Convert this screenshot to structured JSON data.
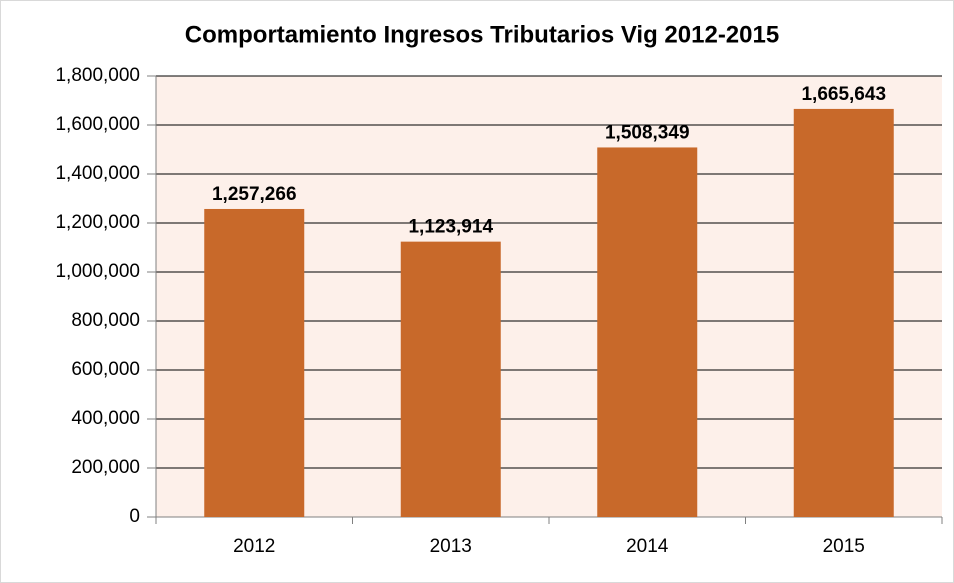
{
  "chart_data": {
    "type": "bar",
    "title": "Comportamiento  Ingresos Tributarios Vig 2012-2015",
    "categories": [
      "2012",
      "2013",
      "2014",
      "2015"
    ],
    "values": [
      1257266,
      1123914,
      1508349,
      1665643
    ],
    "value_labels": [
      "1,257,266",
      "1,123,914",
      "1,508,349",
      "1,665,643"
    ],
    "color": "#c8692a",
    "ylim": [
      0,
      1800000
    ],
    "yticks": [
      0,
      {
        "value": 200000,
        "label": "200,000"
      },
      {
        "value": 400000,
        "label": "400,000"
      },
      {
        "value": 600000,
        "label": "600,000"
      },
      {
        "value": 800000,
        "label": "800,000"
      },
      {
        "value": 1000000,
        "label": "1,000,000"
      },
      {
        "value": 1200000,
        "label": "1,200,000"
      },
      {
        "value": 1400000,
        "label": "1,400,000"
      },
      {
        "value": 1600000,
        "label": "1,600,000"
      },
      {
        "value": 1800000,
        "label": "1,800,000"
      }
    ],
    "grid": true
  }
}
